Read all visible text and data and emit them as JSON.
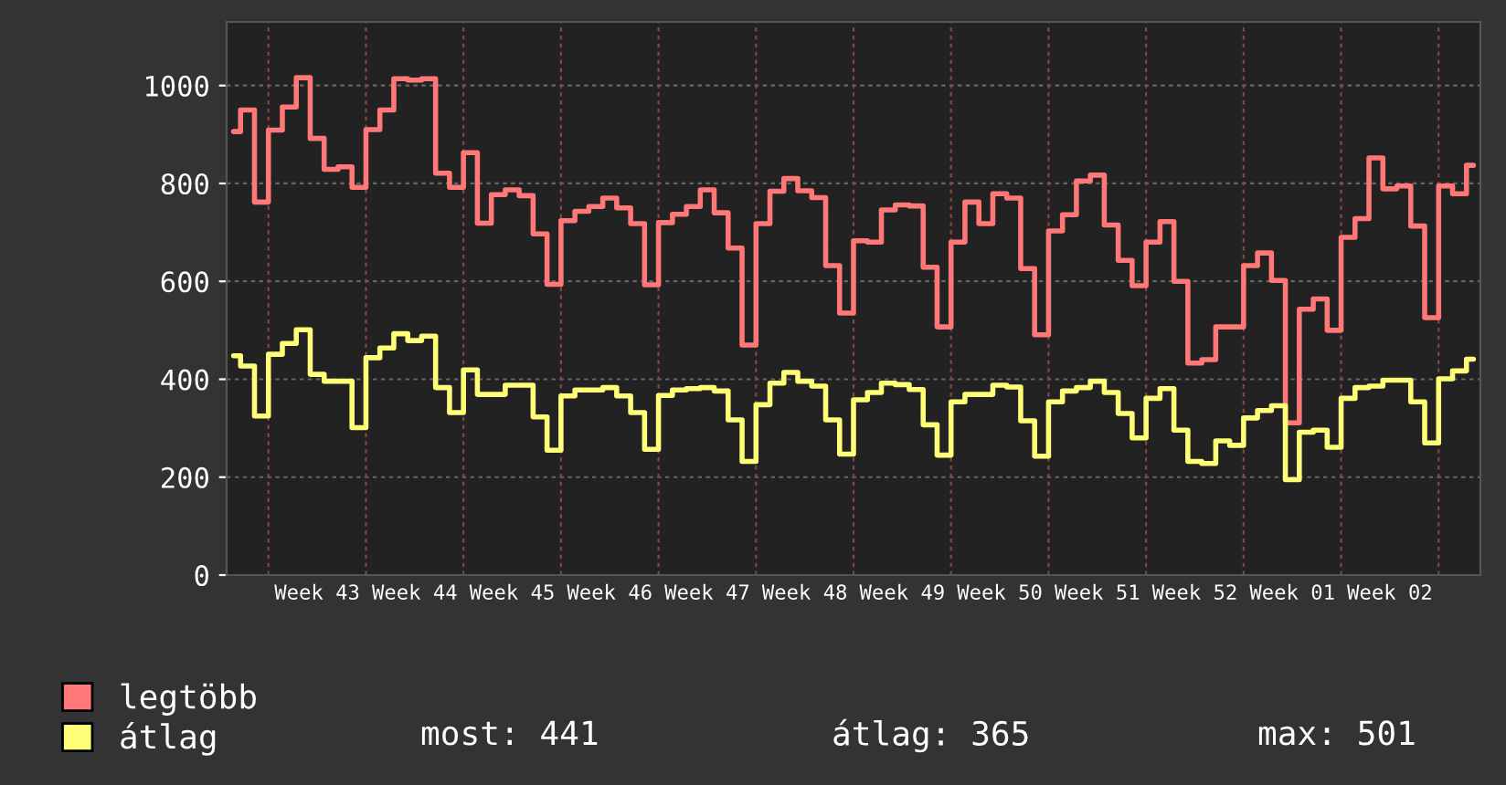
{
  "chart_data": {
    "type": "step",
    "categories": [
      null,
      null,
      null,
      null,
      null,
      null,
      "Week 43",
      null,
      null,
      null,
      null,
      null,
      null,
      "Week 44",
      null,
      null,
      null,
      null,
      null,
      null,
      "Week 45",
      null,
      null,
      null,
      null,
      null,
      null,
      "Week 46",
      null,
      null,
      null,
      null,
      null,
      null,
      "Week 47",
      null,
      null,
      null,
      null,
      null,
      null,
      "Week 48",
      null,
      null,
      null,
      null,
      null,
      null,
      "Week 49",
      null,
      null,
      null,
      null,
      null,
      null,
      "Week 50",
      null,
      null,
      null,
      null,
      null,
      null,
      "Week 51",
      null,
      null,
      null,
      null,
      null,
      null,
      "Week 52",
      null,
      null,
      null,
      null,
      null,
      null,
      "Week 01",
      null,
      null,
      null,
      null,
      null,
      null,
      "Week 02",
      null,
      null,
      null,
      null,
      null,
      null
    ],
    "series": [
      {
        "name": "legtöbb",
        "color": "#ff7777",
        "values": [
          906,
          950,
          762,
          909,
          956,
          1016,
          892,
          829,
          834,
          792,
          910,
          950,
          1014,
          1011,
          1014,
          821,
          792,
          863,
          719,
          777,
          787,
          775,
          697,
          594,
          724,
          743,
          753,
          770,
          750,
          718,
          593,
          720,
          737,
          753,
          787,
          740,
          668,
          470,
          718,
          784,
          810,
          785,
          771,
          632,
          535,
          683,
          680,
          746,
          756,
          754,
          629,
          507,
          680,
          762,
          718,
          779,
          770,
          626,
          491,
          703,
          736,
          805,
          817,
          715,
          643,
          591,
          680,
          722,
          600,
          433,
          440,
          507,
          507,
          632,
          658,
          602,
          311,
          543,
          564,
          500,
          690,
          728,
          852,
          789,
          795,
          713,
          526,
          795,
          779,
          837
        ]
      },
      {
        "name": "átlag",
        "color": "#ffff77",
        "values": [
          448,
          427,
          325,
          451,
          473,
          501,
          410,
          396,
          396,
          301,
          444,
          464,
          493,
          479,
          488,
          383,
          332,
          419,
          369,
          369,
          388,
          388,
          323,
          255,
          366,
          378,
          378,
          383,
          366,
          332,
          257,
          367,
          378,
          381,
          383,
          376,
          317,
          232,
          348,
          392,
          414,
          396,
          386,
          317,
          247,
          358,
          373,
          392,
          389,
          379,
          307,
          245,
          354,
          369,
          369,
          388,
          384,
          315,
          243,
          354,
          376,
          383,
          396,
          373,
          330,
          280,
          361,
          381,
          296,
          232,
          228,
          274,
          265,
          321,
          336,
          346,
          195,
          292,
          296,
          261,
          361,
          383,
          386,
          398,
          398,
          354,
          270,
          401,
          417,
          441
        ]
      }
    ],
    "ylim": [
      0,
      1130
    ],
    "yticks": [
      0,
      200,
      400,
      600,
      800,
      1000
    ],
    "grid": true,
    "legend": "bottom left",
    "line_style": "solid",
    "annotations": [
      "most: 441",
      "átlag: 365",
      "max: 501"
    ]
  }
}
